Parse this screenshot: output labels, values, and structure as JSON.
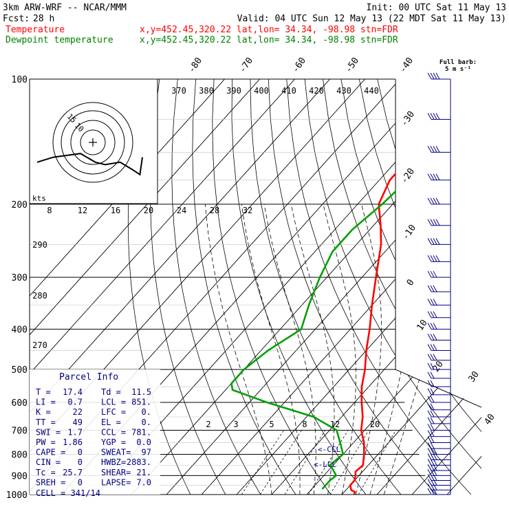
{
  "header": {
    "model": "3km ARW-WRF -- NCAR/MMM",
    "init": "Init: 00 UTC Sat 11 May 13",
    "fcst_label": "Fcst:",
    "fcst_value": "28 h",
    "valid": "Valid: 04 UTC Sun 12 May 13 (22 MDT Sat 11 May 13)",
    "temp_legend": "Temperature",
    "temp_info": "x,y=452.45,320.22   lat,lon= 34.34, -98.98   stn=FDR",
    "dew_legend": "Dewpoint temperature",
    "dew_info": "x,y=452.45,320.22   lat,lon= 34.34, -98.98   stn=FDR"
  },
  "colors": {
    "temperature": "#ff0000",
    "dewpoint": "#00a000",
    "barb": "#000080",
    "info": "#000080",
    "axis": "#000000"
  },
  "chart_data": {
    "type": "line",
    "title": "",
    "y_axis": {
      "label": "",
      "scale": "log",
      "ticks": [
        100,
        200,
        300,
        400,
        500,
        600,
        700,
        800,
        900,
        1000
      ],
      "range": [
        1000,
        100
      ]
    },
    "isotherm_labels": [
      "-80",
      "-70",
      "-60",
      "-50",
      "-40",
      "-30",
      "-20",
      "-10",
      "0",
      "10",
      "20",
      "30",
      "40"
    ],
    "theta_labels": [
      "370",
      "380",
      "390",
      "400",
      "410",
      "420",
      "430",
      "440"
    ],
    "theta_labels_low": [
      "290",
      "280",
      "270"
    ],
    "mixing_ratio_labels": [
      "2",
      "3",
      "5",
      "8",
      "12",
      "20"
    ],
    "hodograph": {
      "speed_label": "kts",
      "ring_labels": [
        "15",
        "10"
      ],
      "axis_ticks": [
        "8",
        "12",
        "16",
        "20",
        "24",
        "28",
        "32"
      ],
      "points": [
        [
          -45,
          -16
        ],
        [
          -32,
          -12
        ],
        [
          -10,
          -9
        ],
        [
          2,
          -16
        ],
        [
          10,
          -18
        ],
        [
          22,
          -16
        ],
        [
          32,
          -22
        ],
        [
          38,
          -26
        ],
        [
          40,
          -12
        ]
      ],
      "center": [
        0,
        0
      ]
    },
    "series": [
      {
        "name": "Temperature",
        "key": "temperature",
        "points": [
          [
            1000,
            23.5
          ],
          [
            985,
            23
          ],
          [
            975,
            21.5
          ],
          [
            950,
            20
          ],
          [
            925,
            20
          ],
          [
            900,
            19
          ],
          [
            880,
            18
          ],
          [
            850,
            18.5
          ],
          [
            800,
            16
          ],
          [
            750,
            13
          ],
          [
            700,
            9
          ],
          [
            650,
            6
          ],
          [
            600,
            2
          ],
          [
            550,
            -2
          ],
          [
            500,
            -5.5
          ],
          [
            450,
            -10
          ],
          [
            400,
            -14.5
          ],
          [
            350,
            -20
          ],
          [
            300,
            -26
          ],
          [
            250,
            -33
          ],
          [
            225,
            -38
          ],
          [
            200,
            -44
          ],
          [
            175,
            -47
          ],
          [
            160,
            -47
          ],
          [
            150,
            -48
          ],
          [
            140,
            -48
          ],
          [
            130,
            -48.5
          ],
          [
            120,
            -50
          ],
          [
            110,
            -52
          ],
          [
            100,
            -53
          ]
        ]
      },
      {
        "name": "Dewpoint temperature",
        "key": "dewpoint",
        "points": [
          [
            970,
            13
          ],
          [
            960,
            13
          ],
          [
            925,
            13
          ],
          [
            900,
            13.5
          ],
          [
            870,
            11
          ],
          [
            850,
            9
          ],
          [
            800,
            10
          ],
          [
            760,
            7
          ],
          [
            700,
            2
          ],
          [
            650,
            -8
          ],
          [
            600,
            -25
          ],
          [
            560,
            -38
          ],
          [
            540,
            -40
          ],
          [
            500,
            -40
          ],
          [
            450,
            -38
          ],
          [
            400,
            -34
          ],
          [
            350,
            -38
          ],
          [
            300,
            -42
          ],
          [
            260,
            -45
          ],
          [
            230,
            -45
          ],
          [
            200,
            -43
          ],
          [
            175,
            -42
          ],
          [
            150,
            -44
          ],
          [
            130,
            -46
          ],
          [
            110,
            -50
          ],
          [
            100,
            -54
          ]
        ]
      }
    ],
    "wind_barbs": {
      "title": "Full barb:",
      "unit": "5 m s⁻¹"
    }
  },
  "parcel_info": {
    "title": "Parcel Info",
    "rows": [
      [
        "T  =",
        "17.4",
        "Td =",
        "11.5"
      ],
      [
        "LI =",
        "0.7",
        "LCL =",
        "851."
      ],
      [
        "K  =",
        "22",
        "LFC =",
        "0."
      ],
      [
        "TT =",
        "49",
        "EL  =",
        "0."
      ],
      [
        "SWI =",
        "1.7",
        "CCL =",
        "781."
      ],
      [
        "PW =",
        "1.86",
        "YGP =",
        "0.0"
      ],
      [
        "CAPE =",
        "0",
        "SWEAT=",
        "97"
      ],
      [
        "CIN =",
        "0",
        "HWBZ=",
        "2883."
      ],
      [
        "Tc =",
        "25.7",
        "SHEAR=",
        "21."
      ],
      [
        "SREH =",
        "0",
        "LAPSE=",
        "7.0"
      ]
    ],
    "cell": "CELL = 341/14"
  },
  "markers": {
    "ccl": "CCL",
    "lcl": "LCL"
  }
}
